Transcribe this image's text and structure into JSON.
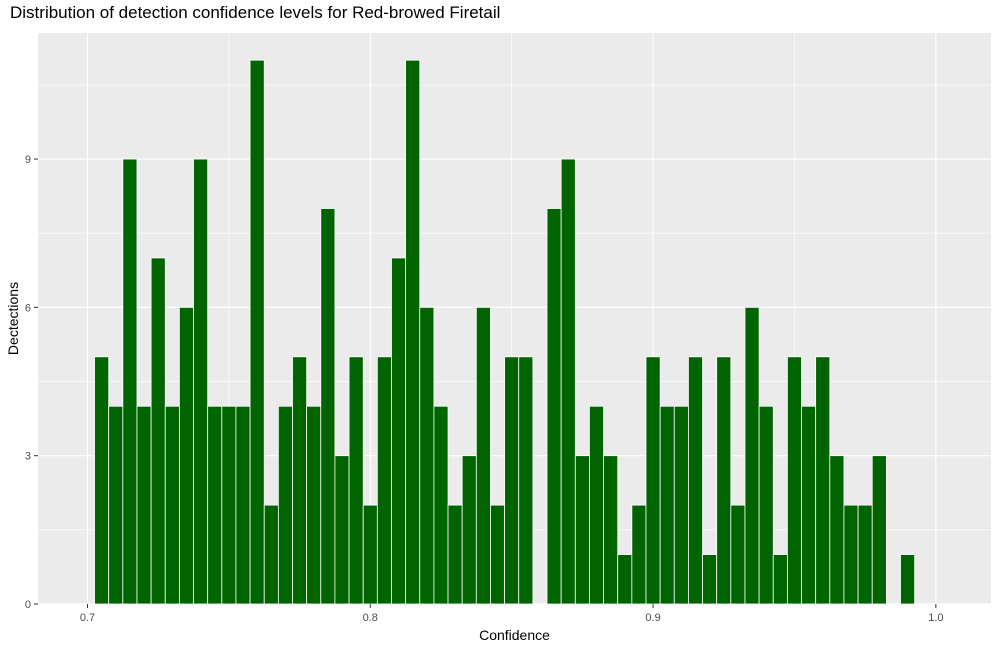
{
  "chart_data": {
    "type": "bar",
    "title": "Distribution of detection confidence levels for Red-browed Firetail",
    "xlabel": "Confidence",
    "ylabel": "Dectections",
    "xlim": [
      0.6825,
      1.0195
    ],
    "ylim": [
      0,
      11.55
    ],
    "x_ticks": [
      0.7,
      0.8,
      0.9,
      1.0
    ],
    "x_tick_labels": [
      "0.7",
      "0.8",
      "0.9",
      "1.0"
    ],
    "y_ticks": [
      0,
      3,
      6,
      9
    ],
    "y_tick_labels": [
      "0",
      "3",
      "6",
      "9"
    ],
    "bin_width": 0.005,
    "bin_centers": [
      0.705,
      0.71,
      0.715,
      0.72,
      0.725,
      0.73,
      0.735,
      0.74,
      0.745,
      0.75,
      0.755,
      0.76,
      0.765,
      0.77,
      0.775,
      0.78,
      0.785,
      0.79,
      0.795,
      0.8,
      0.805,
      0.81,
      0.815,
      0.82,
      0.825,
      0.83,
      0.835,
      0.84,
      0.845,
      0.85,
      0.855,
      0.86,
      0.865,
      0.87,
      0.875,
      0.88,
      0.885,
      0.89,
      0.895,
      0.9,
      0.905,
      0.91,
      0.915,
      0.92,
      0.925,
      0.93,
      0.935,
      0.94,
      0.945,
      0.95,
      0.955,
      0.96,
      0.965,
      0.97,
      0.975,
      0.98,
      0.985,
      0.99
    ],
    "values": [
      5,
      4,
      9,
      4,
      7,
      4,
      6,
      9,
      4,
      4,
      4,
      11,
      2,
      4,
      5,
      4,
      8,
      3,
      5,
      2,
      5,
      7,
      11,
      6,
      4,
      2,
      3,
      6,
      2,
      5,
      5,
      0,
      8,
      9,
      3,
      4,
      3,
      1,
      2,
      5,
      4,
      4,
      5,
      1,
      5,
      2,
      6,
      4,
      1,
      5,
      4,
      5,
      3,
      2,
      2,
      3,
      0,
      1
    ],
    "bar_color": "#006400",
    "panel_color": "#ebebeb",
    "grid": true,
    "legend": "none"
  }
}
